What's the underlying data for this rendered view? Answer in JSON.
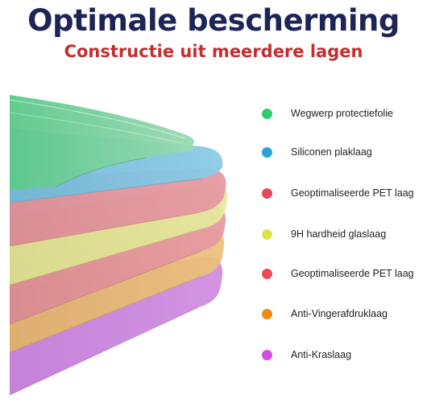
{
  "header": {
    "title": "Optimale bescherming",
    "subtitle": "Constructie uit meerdere lagen"
  },
  "layers": [
    {
      "label": "Wegwerp protectiefolie",
      "color": "#2ecc71"
    },
    {
      "label": "Siliconen plaklaag",
      "color": "#2aa3d6"
    },
    {
      "label": "Geoptimaliseerde PET laag",
      "color": "#e8495b"
    },
    {
      "label": "9H hardheid glaslaag",
      "color": "#e0e24a"
    },
    {
      "label": "Geoptimaliseerde PET laag",
      "color": "#e8495b"
    },
    {
      "label": "Anti-Vingerafdruklaag",
      "color": "#ef8a12"
    },
    {
      "label": "Anti-Kraslaag",
      "color": "#d14cdf"
    }
  ]
}
